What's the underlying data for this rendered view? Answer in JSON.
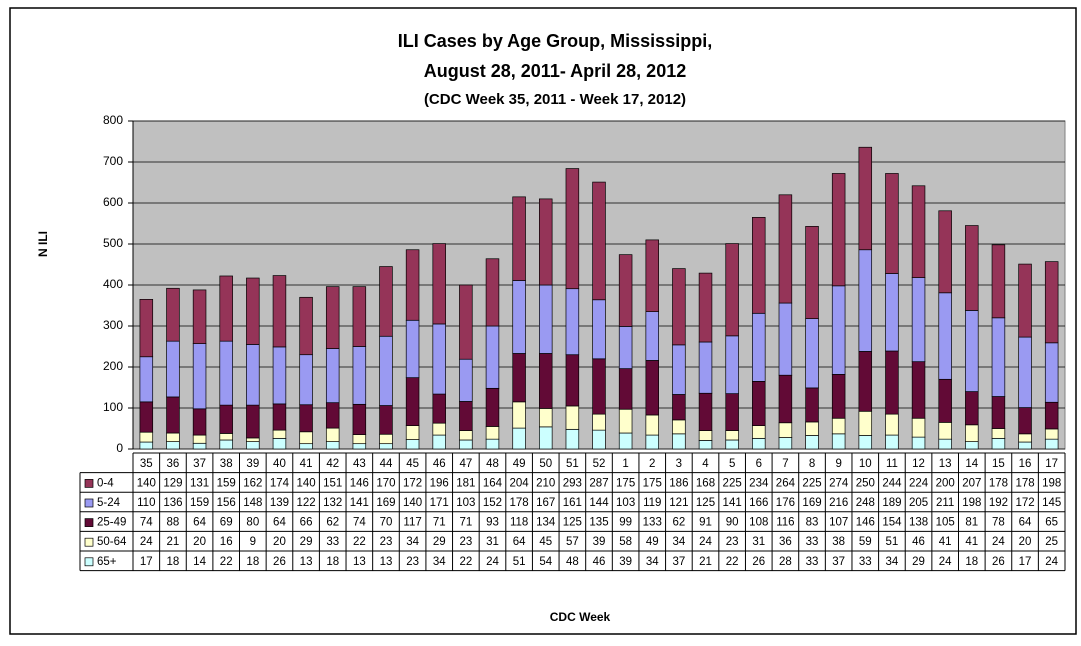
{
  "chart_data": {
    "type": "stacked_bar",
    "title": "ILI Cases by Age Group, Mississippi,",
    "subtitle": "August 28, 2011- April 28, 2012",
    "subtitle2": "(CDC Week 35, 2011 - Week 17, 2012)",
    "y_label": "N ILI",
    "x_label": "CDC Week",
    "categories": [
      "35",
      "36",
      "37",
      "38",
      "39",
      "40",
      "41",
      "42",
      "43",
      "44",
      "45",
      "46",
      "47",
      "48",
      "49",
      "50",
      "51",
      "52",
      "1",
      "2",
      "3",
      "4",
      "5",
      "6",
      "7",
      "8",
      "9",
      "10",
      "11",
      "12",
      "13",
      "14",
      "15",
      "16",
      "17"
    ],
    "series": [
      {
        "name": "0-4",
        "color": "#953458",
        "values": [
          140,
          129,
          131,
          159,
          162,
          174,
          140,
          151,
          146,
          170,
          172,
          196,
          181,
          164,
          204,
          210,
          293,
          287,
          175,
          175,
          186,
          168,
          225,
          234,
          264,
          225,
          274,
          250,
          244,
          224,
          200,
          207,
          178,
          178,
          198
        ]
      },
      {
        "name": "5-24",
        "color": "#9a9af2",
        "values": [
          110,
          136,
          159,
          156,
          148,
          139,
          122,
          132,
          141,
          169,
          140,
          171,
          103,
          152,
          178,
          167,
          161,
          144,
          103,
          119,
          121,
          125,
          141,
          166,
          176,
          169,
          216,
          248,
          189,
          205,
          211,
          198,
          192,
          172,
          145
        ]
      },
      {
        "name": "25-49",
        "color": "#620a36",
        "values": [
          74,
          88,
          64,
          69,
          80,
          64,
          66,
          62,
          74,
          70,
          117,
          71,
          71,
          93,
          118,
          134,
          125,
          135,
          99,
          133,
          62,
          91,
          90,
          108,
          116,
          83,
          107,
          146,
          154,
          138,
          105,
          81,
          78,
          64,
          65
        ]
      },
      {
        "name": "50-64",
        "color": "#ffffcc",
        "values": [
          24,
          21,
          20,
          16,
          9,
          20,
          29,
          33,
          22,
          23,
          34,
          29,
          23,
          31,
          64,
          45,
          57,
          39,
          58,
          49,
          34,
          24,
          23,
          31,
          36,
          33,
          38,
          59,
          51,
          46,
          41,
          41,
          24,
          20,
          25
        ]
      },
      {
        "name": "65+",
        "color": "#ccffff",
        "values": [
          17,
          18,
          14,
          22,
          18,
          26,
          13,
          18,
          13,
          13,
          23,
          34,
          22,
          24,
          51,
          54,
          48,
          46,
          39,
          34,
          37,
          21,
          22,
          26,
          28,
          33,
          37,
          33,
          34,
          29,
          24,
          18,
          26,
          17,
          24
        ]
      }
    ],
    "ylim": [
      0,
      800
    ],
    "yticks": [
      0,
      100,
      200,
      300,
      400,
      500,
      600,
      700,
      800
    ],
    "grid": true,
    "plot_background": "#c0c0c0"
  }
}
